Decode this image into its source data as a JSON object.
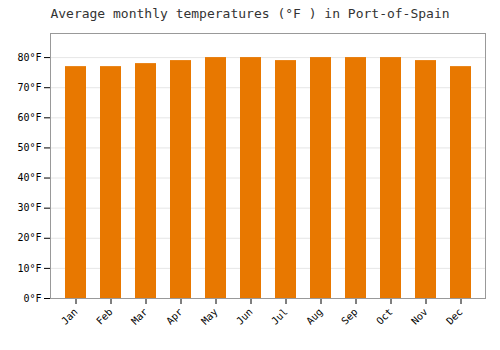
{
  "chart_data": {
    "type": "bar",
    "title": "Average monthly temperatures (°F ) in Port-of-Spain",
    "categories": [
      "Jan",
      "Feb",
      "Mar",
      "Apr",
      "May",
      "Jun",
      "Jul",
      "Aug",
      "Sep",
      "Oct",
      "Nov",
      "Dec"
    ],
    "values": [
      77,
      77,
      78,
      79,
      80,
      80,
      79,
      80,
      80,
      80,
      79,
      77
    ],
    "color": "#E87800",
    "ylim": [
      0,
      88
    ],
    "yticks": [
      {
        "value": 0,
        "label": "0°F"
      },
      {
        "value": 10,
        "label": "10°F"
      },
      {
        "value": 20,
        "label": "20°F"
      },
      {
        "value": 30,
        "label": "30°F"
      },
      {
        "value": 40,
        "label": "40°F"
      },
      {
        "value": 50,
        "label": "50°F"
      },
      {
        "value": 60,
        "label": "60°F"
      },
      {
        "value": 70,
        "label": "70°F"
      },
      {
        "value": 80,
        "label": "80°F"
      }
    ],
    "grid": true
  }
}
